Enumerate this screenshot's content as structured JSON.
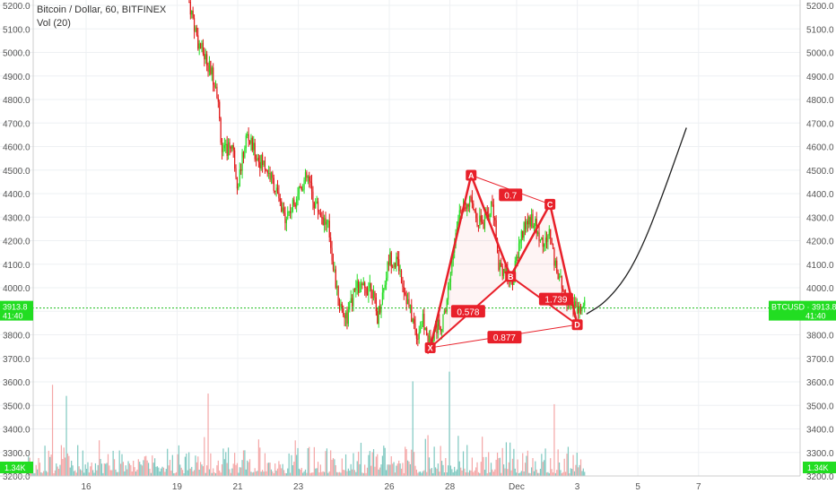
{
  "legend": {
    "title": "Bitcoin / Dollar, 60, BITFINEX",
    "volume_label": "Vol (20)"
  },
  "colors": {
    "up": "#22dd22",
    "down": "#e01818",
    "vol_up": "#7ec8c0",
    "vol_down": "#f4a6a6",
    "pattern": "#e8202a",
    "price_line": "#1fbf1f",
    "forecast": "#222222"
  },
  "price_badge": {
    "symbol_label": "BTCUSD",
    "price": "3913.8",
    "countdown": "41:40"
  },
  "volume_badge": "1.34K",
  "chart_data": {
    "type": "candlestick",
    "title": "Bitcoin / Dollar, 60, BITFINEX",
    "ylim": [
      3140,
      5230
    ],
    "y_ticks": [
      "5200.0",
      "5100.0",
      "5000.0",
      "4900.0",
      "4800.0",
      "4700.0",
      "4600.0",
      "4500.0",
      "4400.0",
      "4300.0",
      "4200.0",
      "4100.0",
      "4000.0",
      "3900.0",
      "3800.0",
      "3700.0",
      "3600.0",
      "3500.0",
      "3400.0",
      "3300.0",
      "3200.0"
    ],
    "x_ticks": [
      "16",
      "19",
      "21",
      "23",
      "26",
      "28",
      "Dec",
      "3",
      "5",
      "7"
    ],
    "current_price": 3913.8,
    "price_path": [
      [
        19.4,
        5215
      ],
      [
        19.7,
        5040
      ],
      [
        20.0,
        4960
      ],
      [
        20.3,
        4860
      ],
      [
        20.5,
        4560
      ],
      [
        20.8,
        4620
      ],
      [
        21.0,
        4440
      ],
      [
        21.3,
        4650
      ],
      [
        21.6,
        4560
      ],
      [
        21.9,
        4520
      ],
      [
        22.2,
        4440
      ],
      [
        22.5,
        4300
      ],
      [
        22.8,
        4340
      ],
      [
        23.0,
        4420
      ],
      [
        23.3,
        4470
      ],
      [
        23.5,
        4370
      ],
      [
        23.8,
        4300
      ],
      [
        24.0,
        4250
      ],
      [
        24.3,
        3950
      ],
      [
        24.6,
        3870
      ],
      [
        24.9,
        4000
      ],
      [
        25.2,
        3990
      ],
      [
        25.4,
        4020
      ],
      [
        25.6,
        3870
      ],
      [
        25.8,
        3990
      ],
      [
        26.0,
        4130
      ],
      [
        26.3,
        4100
      ],
      [
        26.6,
        3940
      ],
      [
        26.9,
        3800
      ],
      [
        27.1,
        3860
      ],
      [
        27.3,
        3760
      ],
      [
        27.5,
        3830
      ],
      [
        27.8,
        3860
      ],
      [
        28.0,
        4050
      ],
      [
        28.3,
        4320
      ],
      [
        28.6,
        4380
      ],
      [
        28.9,
        4300
      ],
      [
        29.1,
        4270
      ],
      [
        29.4,
        4360
      ],
      [
        29.6,
        4110
      ],
      [
        29.9,
        4050
      ],
      [
        30.1,
        4040
      ],
      [
        30.3,
        4200
      ],
      [
        30.5,
        4270
      ],
      [
        30.7,
        4300
      ],
      [
        30.9,
        4230
      ],
      [
        31.1,
        4180
      ],
      [
        31.3,
        4240
      ],
      [
        31.5,
        4070
      ],
      [
        31.7,
        4000
      ],
      [
        31.9,
        3960
      ],
      [
        32.0,
        3930
      ],
      [
        32.15,
        3900
      ],
      [
        32.3,
        3905
      ],
      [
        32.45,
        3913.8
      ]
    ],
    "volume_max": "1.34K",
    "harmonic_pattern": {
      "points": [
        {
          "label": "X",
          "x": 27.35,
          "y": 3745
        },
        {
          "label": "A",
          "x": 28.7,
          "y": 4478
        },
        {
          "label": "B",
          "x": 30.0,
          "y": 4048
        },
        {
          "label": "C",
          "x": 31.3,
          "y": 4355
        },
        {
          "label": "D",
          "x": 32.2,
          "y": 3843
        }
      ],
      "ratios": [
        {
          "label": "0.7",
          "x": 30.0,
          "y": 4395
        },
        {
          "label": "0.578",
          "x": 28.6,
          "y": 3900
        },
        {
          "label": "1.739",
          "x": 31.5,
          "y": 3952
        },
        {
          "label": "0.877",
          "x": 29.8,
          "y": 3790
        }
      ]
    },
    "forecast_curve": [
      [
        32.5,
        3888
      ],
      [
        33.1,
        3935
      ],
      [
        33.8,
        4040
      ],
      [
        34.4,
        4190
      ],
      [
        35.0,
        4390
      ],
      [
        35.5,
        4570
      ],
      [
        35.8,
        4680
      ]
    ]
  }
}
